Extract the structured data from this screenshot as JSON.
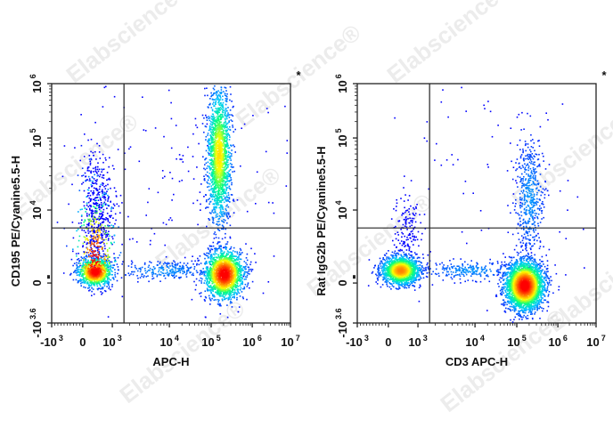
{
  "watermark": "Elabscience",
  "chart_data": [
    {
      "type": "scatter",
      "subtype": "flow-cytometry-density-plot",
      "xlabel": "APC-H",
      "ylabel": "CD195 PE/Cyanine5.5-H",
      "corner_mark": "*",
      "x_scale": "biexponential",
      "y_scale": "biexponential",
      "x_ticks": [
        {
          "base": "-10",
          "exp": "3"
        },
        {
          "base": "0",
          "exp": ""
        },
        {
          "base": "10",
          "exp": "3"
        },
        {
          "base": "10",
          "exp": "4"
        },
        {
          "base": "10",
          "exp": "5"
        },
        {
          "base": "10",
          "exp": "6"
        },
        {
          "base": "10",
          "exp": "7"
        }
      ],
      "y_ticks": [
        {
          "base": "10",
          "exp": "6"
        },
        {
          "base": "10",
          "exp": "5"
        },
        {
          "base": "10",
          "exp": "4"
        },
        {
          "base": "0",
          "exp": ""
        },
        {
          "base": "-10",
          "exp": "3.6"
        }
      ],
      "xlim": [
        -1000,
        10000000
      ],
      "ylim": [
        -3981,
        1000000
      ],
      "gate": {
        "x": 1600,
        "y": 3000
      },
      "populations": [
        {
          "x": 400,
          "y": 130,
          "events": 1300
        },
        {
          "x": 200000,
          "y": 100,
          "events": 1800
        },
        {
          "x": 150000,
          "y": 60000,
          "events": 1700
        },
        {
          "x": 500,
          "y": 8000,
          "events": 500
        },
        {
          "x": 8000,
          "y": 150,
          "events": 250
        },
        {
          "x": 30000,
          "y": 30000,
          "events": 150
        }
      ],
      "colormap": [
        "#0000ff",
        "#00c8ff",
        "#00ff80",
        "#ffff00",
        "#ff8000",
        "#ff0000"
      ]
    },
    {
      "type": "scatter",
      "subtype": "flow-cytometry-density-plot",
      "xlabel": "CD3 APC-H",
      "ylabel": "Rat IgG2b PE/Cyanine5.5-H",
      "corner_mark": "*",
      "x_scale": "biexponential",
      "y_scale": "biexponential",
      "x_ticks": [
        {
          "base": "-10",
          "exp": "3"
        },
        {
          "base": "0",
          "exp": ""
        },
        {
          "base": "10",
          "exp": "3"
        },
        {
          "base": "10",
          "exp": "4"
        },
        {
          "base": "10",
          "exp": "5"
        },
        {
          "base": "10",
          "exp": "6"
        },
        {
          "base": "10",
          "exp": "7"
        }
      ],
      "y_ticks": [
        {
          "base": "10",
          "exp": "6"
        },
        {
          "base": "10",
          "exp": "5"
        },
        {
          "base": "10",
          "exp": "4"
        },
        {
          "base": "0",
          "exp": ""
        },
        {
          "base": "-10",
          "exp": "3.6"
        }
      ],
      "xlim": [
        -1000,
        10000000
      ],
      "ylim": [
        -3981,
        1000000
      ],
      "gate": {
        "x": 1600,
        "y": 3000
      },
      "populations": [
        {
          "x": 400,
          "y": 150,
          "events": 1500
        },
        {
          "x": 150000,
          "y": -200,
          "events": 3000
        },
        {
          "x": 200000,
          "y": 15000,
          "events": 500
        },
        {
          "x": 600,
          "y": 3000,
          "events": 150
        },
        {
          "x": 8000,
          "y": 150,
          "events": 250
        },
        {
          "x": 30000,
          "y": 40000,
          "events": 80
        }
      ],
      "colormap": [
        "#0000ff",
        "#00c8ff",
        "#00ff80",
        "#ffff00",
        "#ff8000",
        "#ff0000"
      ]
    }
  ]
}
